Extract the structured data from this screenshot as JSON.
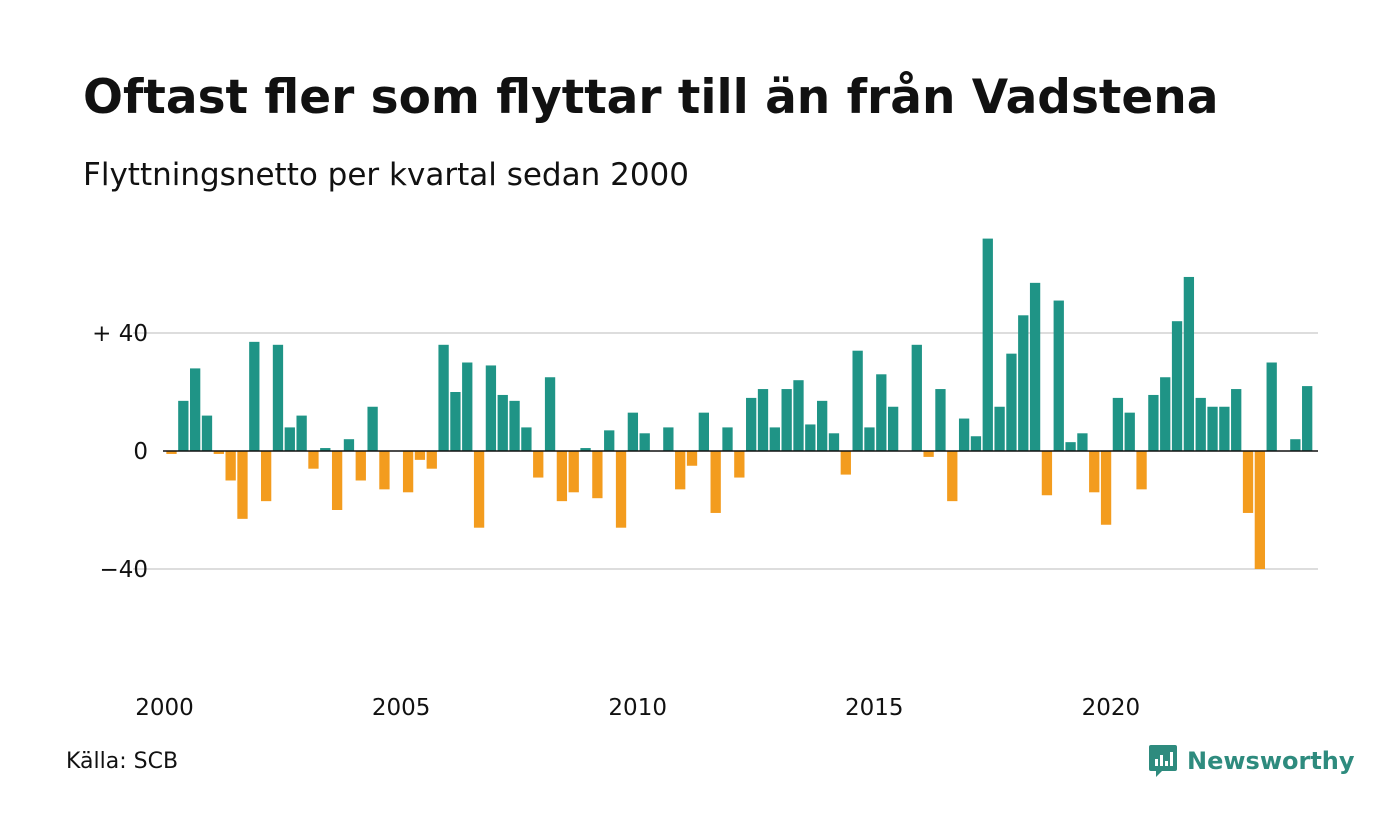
{
  "title": "Oftast fler som flyttar till än från Vadstena",
  "subtitle": "Flyttningsnetto per kvartal sedan 2000",
  "source": "Källa: SCB",
  "brand": {
    "name": "Newsworthy",
    "icon": "newsworthy-logo-icon",
    "color": "#2e8b7e"
  },
  "colors": {
    "positive": "#1f9486",
    "negative": "#f39c1e",
    "grid": "#dddddd",
    "zero_line": "#111111"
  },
  "chart_data": {
    "type": "bar",
    "title": "Oftast fler som flyttar till än från Vadstena",
    "subtitle": "Flyttningsnetto per kvartal sedan 2000",
    "xlabel": "",
    "ylabel": "",
    "start_year": 2000,
    "periods_per_year": 4,
    "x_ticks": [
      "2000",
      "2005",
      "2010",
      "2015",
      "2020"
    ],
    "y_ticks": [
      {
        "value": 40,
        "label": "+ 40"
      },
      {
        "value": 0,
        "label": "0"
      },
      {
        "value": -40,
        "label": "−40"
      }
    ],
    "ylim": [
      -80,
      72
    ],
    "grid": true,
    "values": [
      -1,
      17,
      28,
      12,
      -1,
      -10,
      -23,
      37,
      -17,
      36,
      8,
      12,
      -6,
      1,
      -20,
      4,
      -10,
      15,
      -13,
      0,
      -14,
      -3,
      -6,
      36,
      20,
      30,
      -26,
      29,
      19,
      17,
      8,
      -9,
      25,
      -17,
      -14,
      1,
      -16,
      7,
      -26,
      13,
      6,
      0,
      8,
      -13,
      -5,
      13,
      -21,
      8,
      -9,
      18,
      21,
      8,
      21,
      24,
      9,
      17,
      6,
      -8,
      34,
      8,
      26,
      15,
      0,
      36,
      -2,
      21,
      -17,
      11,
      5,
      72,
      15,
      33,
      46,
      57,
      -15,
      51,
      3,
      6,
      -14,
      -25,
      18,
      13,
      -13,
      19,
      25,
      44,
      59,
      18,
      15,
      15,
      21,
      -21,
      -40,
      30,
      0,
      4,
      22
    ]
  }
}
